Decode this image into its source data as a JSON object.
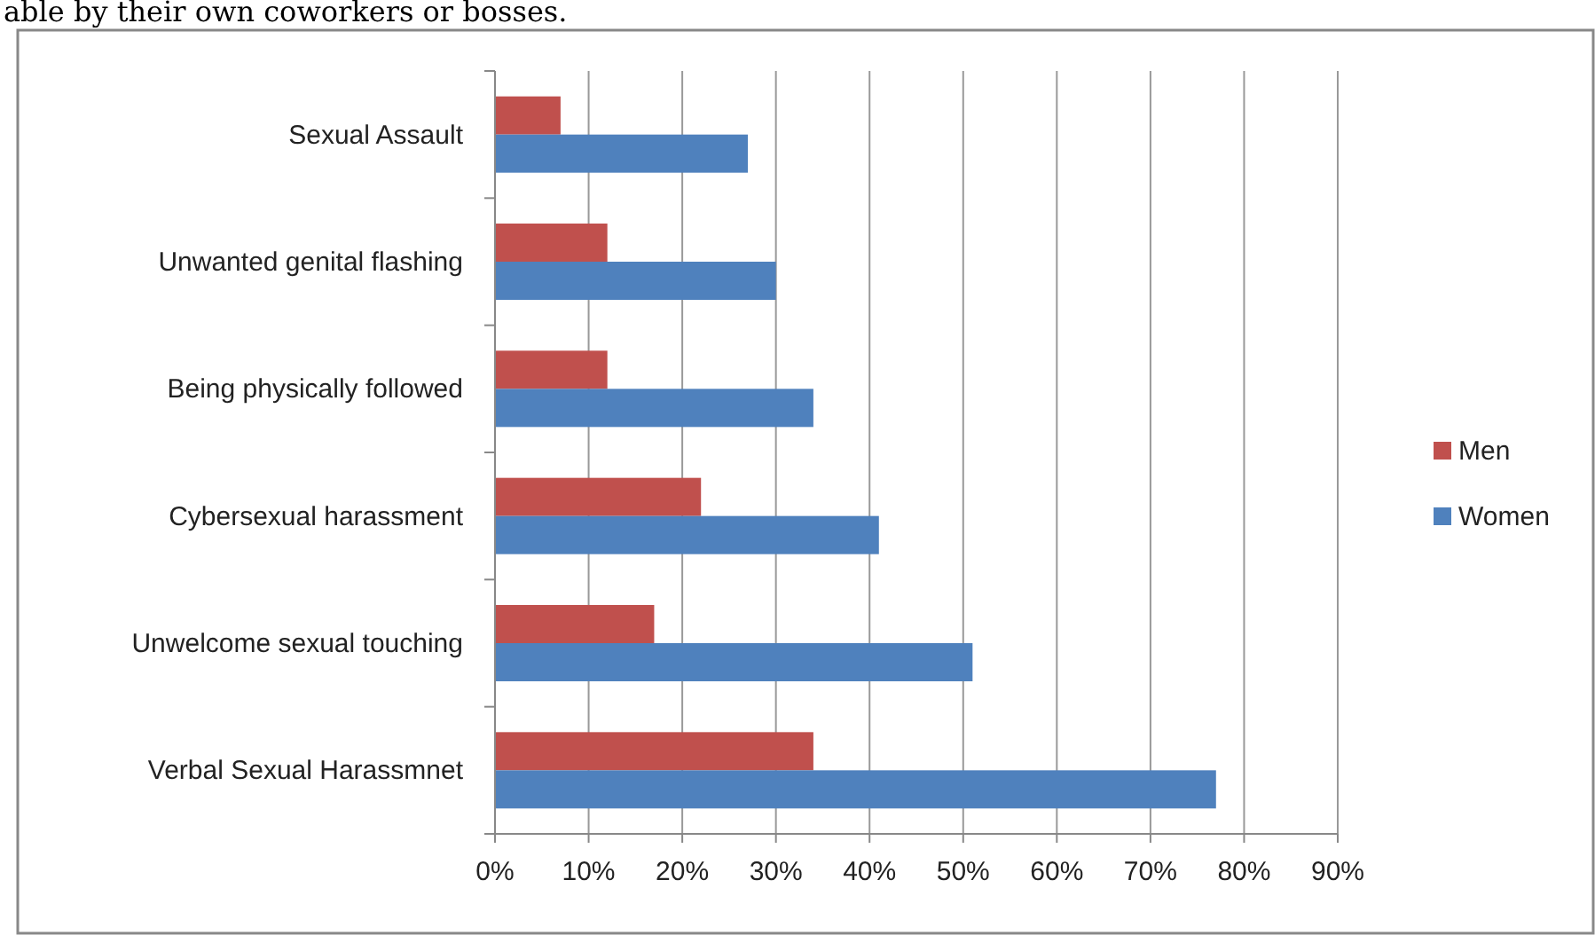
{
  "chart_data": {
    "type": "bar",
    "orientation": "horizontal",
    "annotations": [
      "able by their own coworkers or bosses."
    ],
    "categories": [
      "Sexual Assault",
      "Unwanted genital flashing",
      "Being physically followed",
      "Cybersexual harassment",
      "Unwelcome sexual touching",
      "Verbal Sexual Harassmnet"
    ],
    "series": [
      {
        "name": "Men",
        "color": "#c0504d",
        "values": [
          7,
          12,
          12,
          22,
          17,
          34
        ]
      },
      {
        "name": "Women",
        "color": "#4f81bd",
        "values": [
          27,
          30,
          34,
          41,
          51,
          77
        ]
      }
    ],
    "xlim": [
      0,
      90
    ],
    "xticks": [
      {
        "value": 0,
        "label": "0%"
      },
      {
        "value": 10,
        "label": "10%"
      },
      {
        "value": 20,
        "label": "20%"
      },
      {
        "value": 30,
        "label": "30%"
      },
      {
        "value": 40,
        "label": "40%"
      },
      {
        "value": 50,
        "label": "50%"
      },
      {
        "value": 60,
        "label": "60%"
      },
      {
        "value": 70,
        "label": "70%"
      },
      {
        "value": 80,
        "label": "80%"
      },
      {
        "value": 90,
        "label": "90%"
      }
    ],
    "grid": "x",
    "legend": "right"
  }
}
